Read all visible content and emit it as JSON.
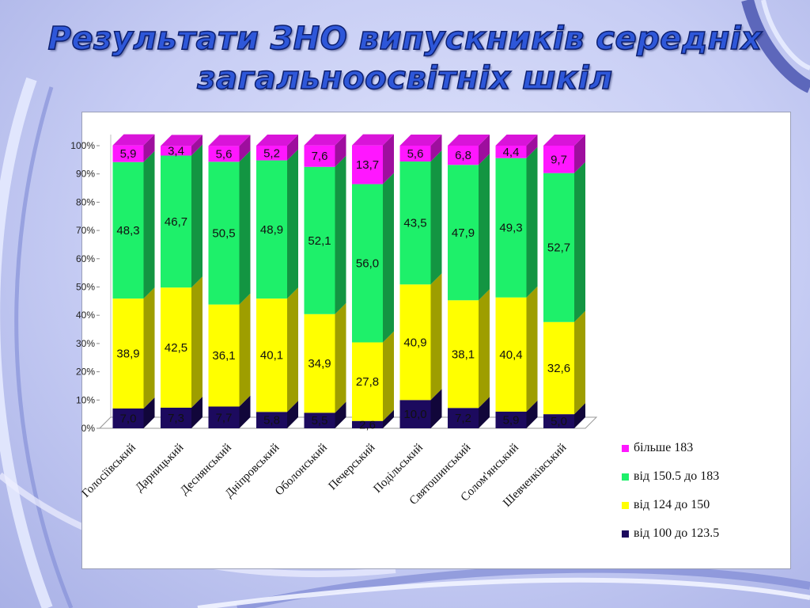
{
  "slide": {
    "title_line1": "Результати ЗНО випускників середніх",
    "title_line2": "загальноосвітніх шкіл"
  },
  "colors": {
    "magenta": "#ff17ff",
    "green": "#1ef06a",
    "yellow": "#ffff00",
    "navy": "#1c0a5e"
  },
  "chart_data": {
    "type": "bar",
    "stacked": true,
    "percent": true,
    "title": "",
    "xlabel": "",
    "ylabel": "",
    "ylim": [
      0,
      100
    ],
    "y_ticks": [
      "0%",
      "10%",
      "20%",
      "30%",
      "40%",
      "50%",
      "60%",
      "70%",
      "80%",
      "90%",
      "100%"
    ],
    "grid": false,
    "legend_position": "bottom-right",
    "categories": [
      "Голосіївський",
      "Дарницький",
      "Деснянський",
      "Дніпровський",
      "Оболонський",
      "Печерський",
      "Подільський",
      "Святошинський",
      "Солом'янський",
      "Шевченківський"
    ],
    "series": [
      {
        "name": "від 100 до 123.5",
        "color": "#1c0a5e",
        "values": [
          7.0,
          7.3,
          7.7,
          5.8,
          5.5,
          2.6,
          10.0,
          7.2,
          5.9,
          5.0
        ],
        "labels": [
          "7,0",
          "7,3",
          "7,7",
          "5,8",
          "5,5",
          "2,6",
          "10,0",
          "7,2",
          "5,9",
          "5,0"
        ]
      },
      {
        "name": "від 124 до 150",
        "color": "#ffff00",
        "values": [
          38.9,
          42.5,
          36.1,
          40.1,
          34.9,
          27.8,
          40.9,
          38.1,
          40.4,
          32.6
        ],
        "labels": [
          "38,9",
          "42,5",
          "36,1",
          "40,1",
          "34,9",
          "27,8",
          "40,9",
          "38,1",
          "40,4",
          "32,6"
        ]
      },
      {
        "name": "від 150.5 до 183",
        "color": "#1ef06a",
        "values": [
          48.3,
          46.7,
          50.5,
          48.9,
          52.1,
          56.0,
          43.5,
          47.9,
          49.3,
          52.7
        ],
        "labels": [
          "48,3",
          "46,7",
          "50,5",
          "48,9",
          "52,1",
          "56,0",
          "43,5",
          "47,9",
          "49,3",
          "52,7"
        ]
      },
      {
        "name": "більше 183",
        "color": "#ff17ff",
        "values": [
          5.9,
          3.4,
          5.6,
          5.2,
          7.6,
          13.7,
          5.6,
          6.8,
          4.4,
          9.7
        ],
        "labels": [
          "5,9",
          "3,4",
          "5,6",
          "5,2",
          "7,6",
          "13,7",
          "5,6",
          "6,8",
          "4,4",
          "9,7"
        ]
      }
    ],
    "legend_order": [
      "більше 183",
      "від 150.5 до 183",
      "від 124 до 150",
      "від 100 до 123.5"
    ]
  }
}
